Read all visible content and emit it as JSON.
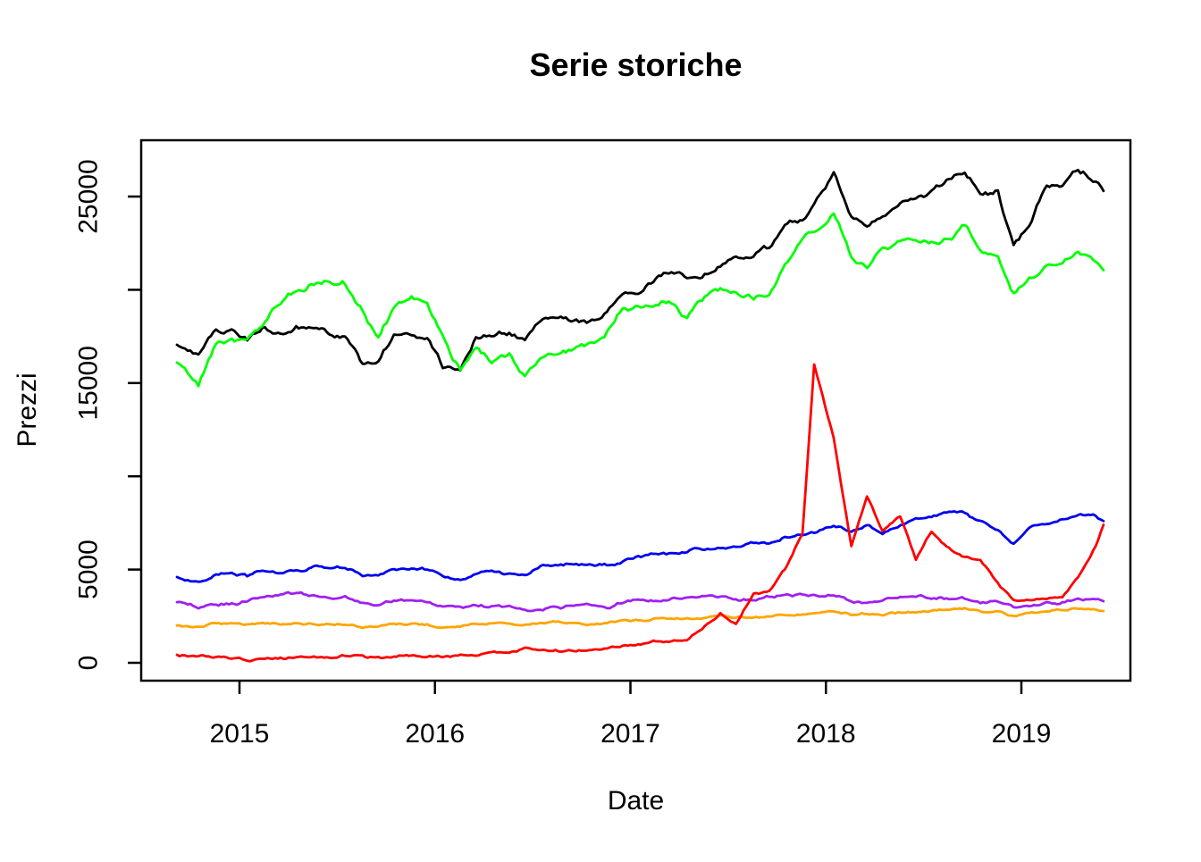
{
  "title": "Serie storiche",
  "x_axis": {
    "label": "Date",
    "ticks": [
      2015,
      2016,
      2017,
      2018,
      2019
    ]
  },
  "y_axis": {
    "label": "Prezzi",
    "ticks": [
      0,
      5000,
      10000,
      15000,
      20000,
      25000
    ],
    "labeled_ticks": [
      0,
      5000,
      15000,
      25000
    ]
  },
  "colors": {
    "background": "#FFFFFF",
    "axis": "#000000"
  },
  "chart_data": {
    "type": "line",
    "title": "Serie storiche",
    "xlabel": "Date",
    "ylabel": "Prezzi",
    "xlim": [
      2014.5,
      2019.56
    ],
    "ylim": [
      -900,
      28000
    ],
    "grid": false,
    "legend": "none",
    "x": [
      2014.68,
      2014.79,
      2014.88,
      2014.96,
      2015.04,
      2015.13,
      2015.21,
      2015.29,
      2015.38,
      2015.46,
      2015.54,
      2015.63,
      2015.71,
      2015.79,
      2015.88,
      2015.96,
      2016.04,
      2016.13,
      2016.21,
      2016.29,
      2016.38,
      2016.46,
      2016.54,
      2016.63,
      2016.71,
      2016.79,
      2016.88,
      2016.96,
      2017.04,
      2017.13,
      2017.21,
      2017.29,
      2017.38,
      2017.46,
      2017.54,
      2017.63,
      2017.71,
      2017.79,
      2017.88,
      2017.94,
      2018.04,
      2018.13,
      2018.21,
      2018.29,
      2018.38,
      2018.46,
      2018.54,
      2018.63,
      2018.71,
      2018.79,
      2018.88,
      2018.96,
      2019.04,
      2019.13,
      2019.21,
      2019.29,
      2019.38,
      2019.42
    ],
    "series": [
      {
        "name": "black-series",
        "color": "#000000",
        "jitter": 4,
        "values": [
          17050,
          16400,
          17800,
          17800,
          17300,
          18100,
          17900,
          18050,
          18200,
          17900,
          17750,
          16000,
          16300,
          17650,
          17800,
          17600,
          16100,
          16000,
          17600,
          17900,
          17750,
          17250,
          18450,
          18500,
          18250,
          18150,
          18900,
          19800,
          19900,
          20700,
          20900,
          20700,
          21000,
          21350,
          21600,
          21900,
          22300,
          23250,
          23900,
          24750,
          26200,
          24200,
          23700,
          24200,
          24800,
          24900,
          25300,
          25950,
          26400,
          25200,
          25300,
          22300,
          23700,
          25600,
          25750,
          26400,
          25800,
          25300
        ]
      },
      {
        "name": "green-series",
        "color": "#00FF00",
        "jitter": 4.5,
        "values": [
          16100,
          14900,
          17200,
          17400,
          17200,
          18300,
          19200,
          19800,
          20300,
          20600,
          20350,
          18900,
          17500,
          18900,
          19700,
          19100,
          17400,
          15600,
          16900,
          16300,
          16700,
          15400,
          16400,
          16700,
          16700,
          17000,
          17700,
          19200,
          19200,
          19300,
          19300,
          18600,
          19700,
          20000,
          20050,
          19650,
          19700,
          21300,
          22500,
          22800,
          23900,
          21700,
          21000,
          21900,
          22450,
          22500,
          22300,
          22500,
          23300,
          21900,
          21800,
          19800,
          20500,
          21100,
          21400,
          22100,
          21300,
          21050
        ]
      },
      {
        "name": "blue-series",
        "color": "#0000EE",
        "jitter": 2.2,
        "values": [
          4600,
          4350,
          4750,
          4780,
          4650,
          4960,
          4900,
          5000,
          5080,
          5100,
          5150,
          4650,
          4700,
          5000,
          5100,
          5050,
          4600,
          4450,
          4800,
          4900,
          4800,
          4700,
          5100,
          5220,
          5300,
          5250,
          5250,
          5440,
          5600,
          5820,
          5900,
          5950,
          6150,
          6250,
          6350,
          6350,
          6450,
          6650,
          6850,
          6950,
          7350,
          7000,
          7450,
          7000,
          7350,
          7650,
          7800,
          8050,
          8000,
          7500,
          7100,
          6400,
          7100,
          7500,
          7700,
          8050,
          7900,
          7600
        ]
      },
      {
        "name": "purple-series",
        "color": "#A020F0",
        "jitter": 2.2,
        "values": [
          3250,
          2950,
          3200,
          3150,
          3350,
          3570,
          3700,
          3800,
          3600,
          3500,
          3600,
          3100,
          3050,
          3350,
          3450,
          3270,
          3000,
          2800,
          3050,
          3050,
          3050,
          2800,
          2950,
          3000,
          3000,
          3050,
          3050,
          3250,
          3300,
          3300,
          3450,
          3550,
          3600,
          3550,
          3480,
          3440,
          3520,
          3650,
          3600,
          3570,
          3650,
          3350,
          3350,
          3500,
          3550,
          3450,
          3500,
          3400,
          3400,
          3200,
          3200,
          2950,
          3100,
          3250,
          3350,
          3500,
          3350,
          3300
        ]
      },
      {
        "name": "orange-series",
        "color": "#FFA500",
        "jitter": 1.6,
        "values": [
          2000,
          1920,
          2050,
          2080,
          2020,
          2100,
          2080,
          2100,
          2120,
          2100,
          2100,
          1930,
          1950,
          2060,
          2090,
          2050,
          1900,
          1870,
          2020,
          2080,
          2060,
          2030,
          2160,
          2180,
          2160,
          2140,
          2180,
          2250,
          2280,
          2350,
          2360,
          2380,
          2400,
          2430,
          2460,
          2450,
          2500,
          2560,
          2600,
          2670,
          2820,
          2650,
          2700,
          2650,
          2720,
          2760,
          2800,
          2880,
          2910,
          2770,
          2730,
          2450,
          2650,
          2780,
          2820,
          2930,
          2850,
          2780
        ]
      },
      {
        "name": "red-series",
        "color": "#FF0000",
        "jitter": 1.8,
        "values": [
          430,
          350,
          370,
          320,
          230,
          250,
          260,
          230,
          235,
          240,
          280,
          230,
          235,
          290,
          350,
          420,
          390,
          400,
          410,
          430,
          450,
          650,
          660,
          570,
          600,
          630,
          720,
          850,
          900,
          1100,
          1100,
          1250,
          1900,
          2600,
          2100,
          3700,
          3800,
          5000,
          7000,
          16000,
          12000,
          6200,
          8800,
          7100,
          7900,
          5600,
          7100,
          6200,
          5700,
          5600,
          4300,
          3300,
          3350,
          3400,
          3550,
          4600,
          6300,
          7400
        ]
      }
    ]
  }
}
